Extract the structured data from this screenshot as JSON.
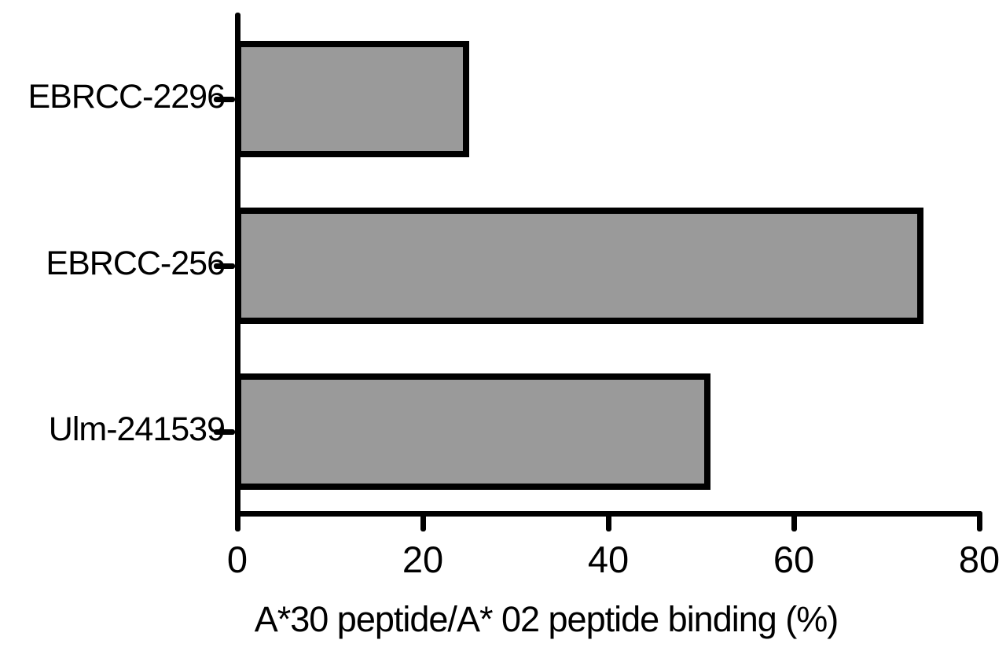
{
  "chart_data": {
    "type": "bar",
    "orientation": "horizontal",
    "title": "",
    "xlabel": "A*30 peptide/A* 02 peptide binding (%)",
    "ylabel": "",
    "categories": [
      "EBRCC-2296",
      "EBRCC-256",
      "Ulm-241539"
    ],
    "values": [
      25,
      74,
      51
    ],
    "xlim": [
      0,
      80
    ],
    "xticks": [
      0,
      20,
      40,
      60,
      80
    ],
    "grid": "off",
    "legend": "none",
    "bar_fill_color": "#9a9a9a",
    "bar_border_color": "#000000",
    "axis_color": "#000000",
    "background_color": "#ffffff"
  }
}
